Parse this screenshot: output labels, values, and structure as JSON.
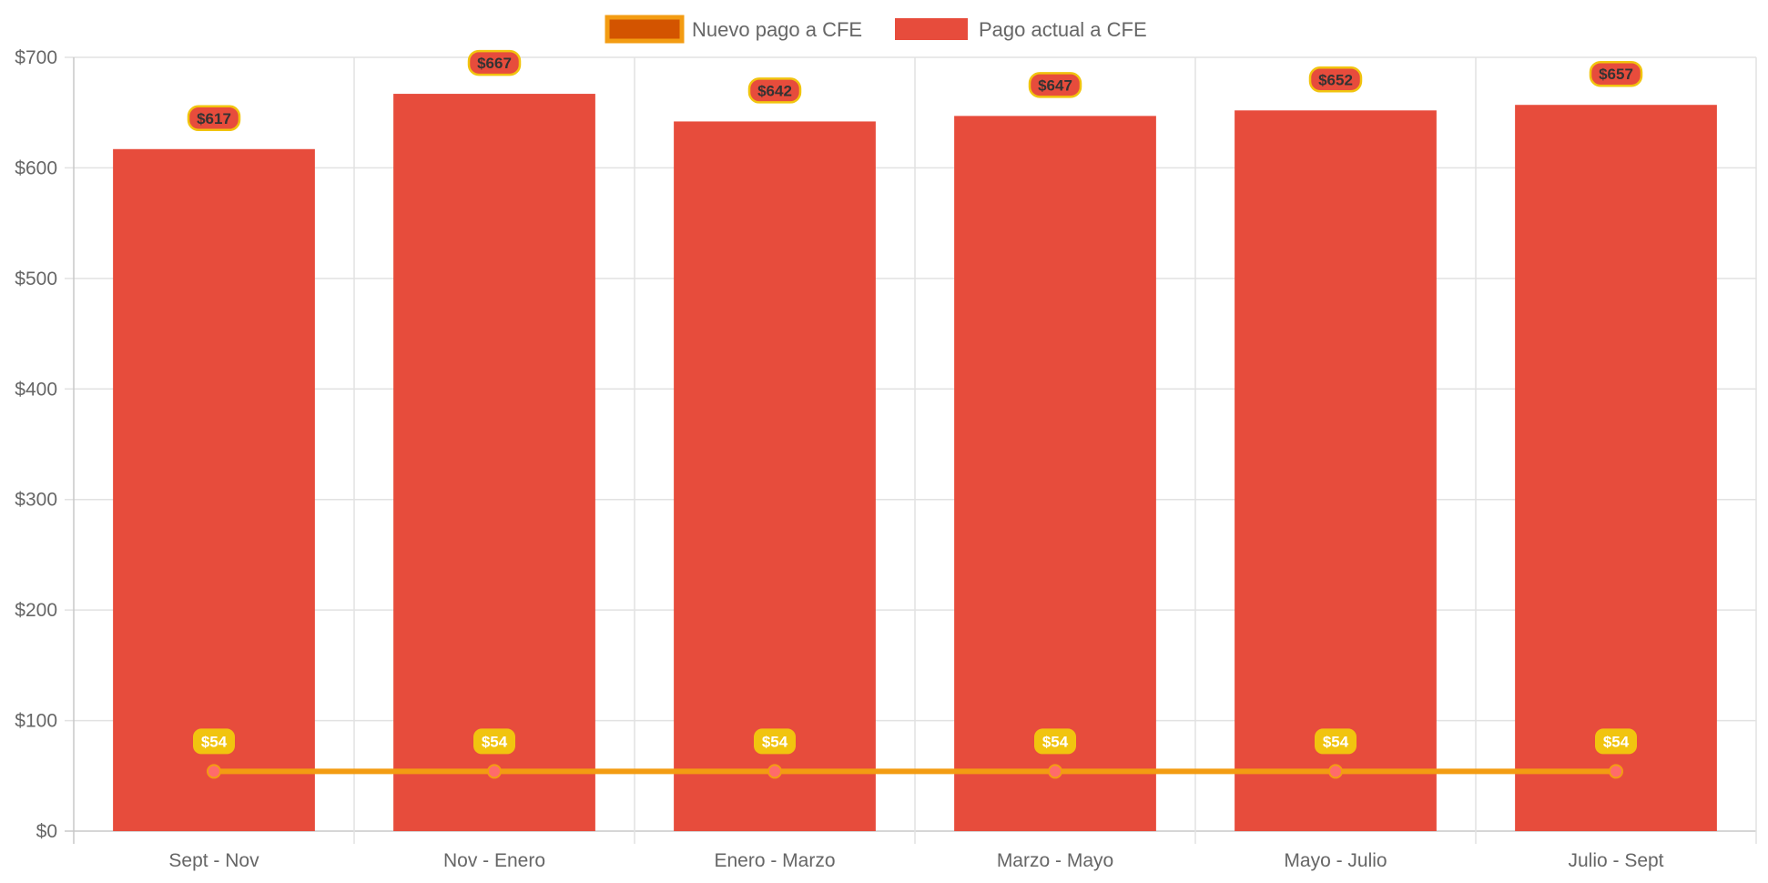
{
  "chart_data": {
    "type": "bar",
    "title": "",
    "xlabel": "",
    "ylabel": "",
    "ylim": [
      0,
      700
    ],
    "yticks": [
      "$0",
      "$100",
      "$200",
      "$300",
      "$400",
      "$500",
      "$600",
      "$700"
    ],
    "categories": [
      "Sept - Nov",
      "Nov - Enero",
      "Enero - Marzo",
      "Marzo - Mayo",
      "Mayo - Julio",
      "Julio - Sept"
    ],
    "grid": true,
    "legend_position": "top-center",
    "series": [
      {
        "name": "Nuevo pago a CFE",
        "type": "line",
        "values": [
          54,
          54,
          54,
          54,
          54,
          54
        ],
        "labels": [
          "$54",
          "$54",
          "$54",
          "$54",
          "$54",
          "$54"
        ],
        "color": "#f39c12",
        "fill": "#d35400",
        "point_color": "#ff6b6b",
        "label_bg": "#f1c40f",
        "label_color": "#ffffff"
      },
      {
        "name": "Pago actual a CFE",
        "type": "bar",
        "values": [
          617,
          667,
          642,
          647,
          652,
          657
        ],
        "labels": [
          "$617",
          "$667",
          "$642",
          "$647",
          "$652",
          "$657"
        ],
        "color": "#e74c3c",
        "label_border": "#f1c40f",
        "label_color": "#333333"
      }
    ]
  }
}
